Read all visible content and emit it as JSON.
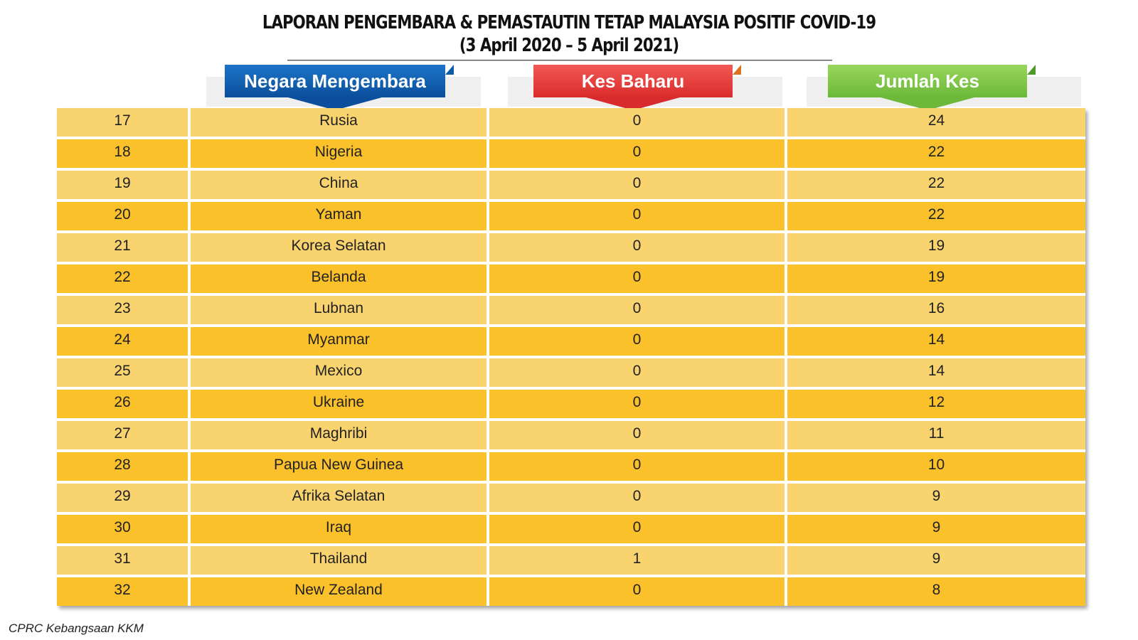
{
  "title": {
    "line1": "LAPORAN PENGEMBARA & PEMASTAUTIN TETAP MALAYSIA POSITIF COVID-19",
    "line2": "(3 April 2020 – 5 April 2021)"
  },
  "headers": {
    "country": "Negara Mengembara",
    "new_cases": "Kes Baharu",
    "total_cases": "Jumlah Kes"
  },
  "colors": {
    "row_light": "#f9d36e",
    "row_dark": "#fbc12b",
    "banner_blue": "#0b4f9c",
    "banner_red": "#d92b2b",
    "banner_green": "#6cb83b"
  },
  "rows": [
    {
      "no": "17",
      "country": "Rusia",
      "new": "0",
      "total": "24"
    },
    {
      "no": "18",
      "country": "Nigeria",
      "new": "0",
      "total": "22"
    },
    {
      "no": "19",
      "country": "China",
      "new": "0",
      "total": "22"
    },
    {
      "no": "20",
      "country": "Yaman",
      "new": "0",
      "total": "22"
    },
    {
      "no": "21",
      "country": "Korea Selatan",
      "new": "0",
      "total": "19"
    },
    {
      "no": "22",
      "country": "Belanda",
      "new": "0",
      "total": "19"
    },
    {
      "no": "23",
      "country": "Lubnan",
      "new": "0",
      "total": "16"
    },
    {
      "no": "24",
      "country": "Myanmar",
      "new": "0",
      "total": "14"
    },
    {
      "no": "25",
      "country": "Mexico",
      "new": "0",
      "total": "14"
    },
    {
      "no": "26",
      "country": "Ukraine",
      "new": "0",
      "total": "12"
    },
    {
      "no": "27",
      "country": "Maghribi",
      "new": "0",
      "total": "11"
    },
    {
      "no": "28",
      "country": "Papua New Guinea",
      "new": "0",
      "total": "10"
    },
    {
      "no": "29",
      "country": "Afrika Selatan",
      "new": "0",
      "total": "9"
    },
    {
      "no": "30",
      "country": "Iraq",
      "new": "0",
      "total": "9"
    },
    {
      "no": "31",
      "country": "Thailand",
      "new": "1",
      "total": "9"
    },
    {
      "no": "32",
      "country": "New Zealand",
      "new": "0",
      "total": "8"
    }
  ],
  "footer": "CPRC Kebangsaan KKM"
}
